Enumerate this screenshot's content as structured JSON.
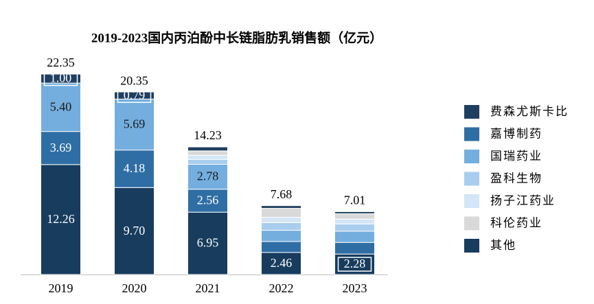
{
  "chart_data": {
    "type": "stacked-bar",
    "title": "2019-2023国内丙泊酚中长链脂肪乳销售额（亿元）",
    "categories": [
      "2019",
      "2020",
      "2021",
      "2022",
      "2023"
    ],
    "totals": [
      22.35,
      20.35,
      14.23,
      7.68,
      7.01
    ],
    "series": [
      {
        "name": "其他",
        "color": "#173c5e",
        "values": [
          12.26,
          9.7,
          6.95,
          2.46,
          2.28
        ],
        "value_labels": [
          "12.26",
          "9.70",
          "6.95",
          "2.46",
          "2.28"
        ]
      },
      {
        "name": "嘉博制药",
        "color": "#2f6ea5",
        "values": [
          3.69,
          4.18,
          2.56,
          1.22,
          1.3
        ],
        "value_labels": [
          "3.69",
          "4.18",
          "2.56",
          null,
          null
        ]
      },
      {
        "name": "国瑞药业",
        "color": "#73aedf",
        "values": [
          5.4,
          5.69,
          2.78,
          1.25,
          1.25
        ],
        "value_labels": [
          "5.40",
          "5.69",
          "2.78",
          null,
          null
        ]
      },
      {
        "name": "盈科生物",
        "color": "#a9cdef",
        "values": [
          0,
          0,
          0.55,
          0.85,
          0.8
        ]
      },
      {
        "name": "扬子江药业",
        "color": "#d3e5f6",
        "values": [
          0,
          0,
          0.45,
          0.6,
          0.55
        ]
      },
      {
        "name": "科伦药业",
        "color": "#d9d9d9",
        "values": [
          0,
          0,
          0.5,
          1.0,
          0.6
        ]
      },
      {
        "name": "费森尤斯卡比",
        "color": "#1f3f60",
        "values": [
          1.0,
          0.79,
          0.44,
          0.3,
          0.23
        ],
        "value_labels": [
          "1.00",
          "0.79",
          null,
          null,
          null
        ]
      }
    ],
    "legend_order": [
      6,
      1,
      2,
      3,
      4,
      5,
      0
    ]
  }
}
